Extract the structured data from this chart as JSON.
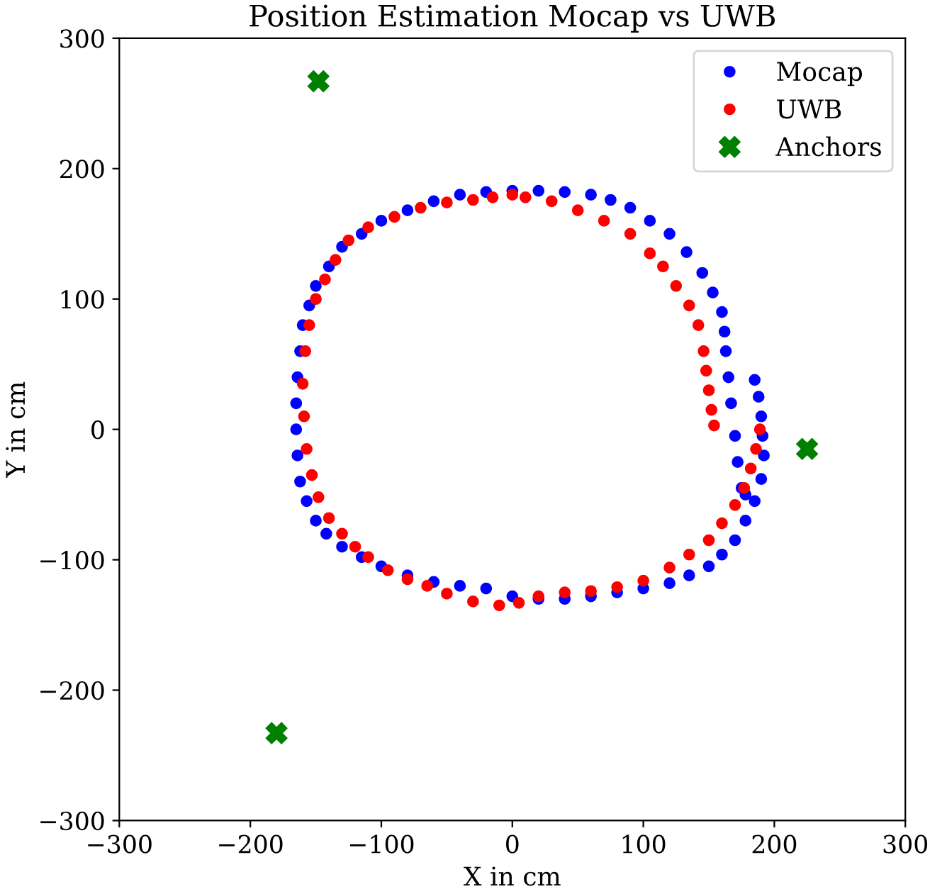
{
  "chart_data": {
    "type": "scatter",
    "title": "Position Estimation Mocap vs UWB",
    "xlabel": "X in cm",
    "ylabel": "Y in cm",
    "xlim": [
      -300,
      300
    ],
    "ylim": [
      -300,
      300
    ],
    "xticks": [
      -300,
      -200,
      -100,
      0,
      100,
      200,
      300
    ],
    "yticks": [
      -300,
      -200,
      -100,
      0,
      100,
      200,
      300
    ],
    "grid": false,
    "legend": "top right",
    "series": [
      {
        "name": "Mocap",
        "color": "#0000ff",
        "marker": "circle",
        "x": [
          185,
          188,
          190,
          191,
          192,
          190,
          185,
          178,
          170,
          160,
          150,
          135,
          120,
          100,
          80,
          60,
          40,
          20,
          0,
          -20,
          -40,
          -60,
          -80,
          -100,
          -115,
          -130,
          -142,
          -150,
          -157,
          -162,
          -164,
          -165,
          -165,
          -164,
          -162,
          -160,
          -155,
          -150,
          -140,
          -130,
          -115,
          -100,
          -80,
          -60,
          -40,
          -20,
          0,
          20,
          40,
          60,
          75,
          90,
          105,
          120,
          133,
          145,
          153,
          160,
          162,
          163,
          165,
          167,
          170,
          172,
          175,
          178
        ],
        "values": [
          38,
          25,
          10,
          -5,
          -20,
          -38,
          -55,
          -70,
          -85,
          -96,
          -105,
          -112,
          -118,
          -122,
          -125,
          -128,
          -130,
          -130,
          -128,
          -122,
          -120,
          -117,
          -112,
          -105,
          -98,
          -90,
          -80,
          -70,
          -55,
          -40,
          -20,
          0,
          20,
          40,
          60,
          80,
          95,
          110,
          125,
          140,
          150,
          160,
          168,
          175,
          180,
          182,
          183,
          183,
          182,
          180,
          176,
          170,
          160,
          150,
          136,
          120,
          105,
          90,
          75,
          60,
          40,
          20,
          -5,
          -25,
          -45,
          -50
        ]
      },
      {
        "name": "UWB",
        "color": "#ff0000",
        "marker": "circle",
        "x": [
          154,
          152,
          150,
          148,
          146,
          142,
          135,
          125,
          115,
          105,
          90,
          70,
          50,
          30,
          10,
          0,
          -15,
          -30,
          -50,
          -70,
          -90,
          -110,
          -125,
          -135,
          -143,
          -150,
          -155,
          -158,
          -160,
          -159,
          -157,
          -153,
          -148,
          -140,
          -130,
          -120,
          -110,
          -95,
          -80,
          -65,
          -50,
          -30,
          -10,
          5,
          20,
          40,
          60,
          80,
          100,
          120,
          135,
          150,
          160,
          170,
          177,
          182,
          186,
          189
        ],
        "values": [
          3,
          15,
          30,
          45,
          60,
          80,
          95,
          110,
          125,
          135,
          150,
          160,
          168,
          175,
          178,
          180,
          178,
          176,
          174,
          170,
          163,
          155,
          145,
          130,
          115,
          100,
          80,
          60,
          35,
          10,
          -15,
          -35,
          -52,
          -68,
          -80,
          -90,
          -98,
          -108,
          -115,
          -120,
          -126,
          -132,
          -135,
          -133,
          -128,
          -125,
          -124,
          -121,
          -116,
          -106,
          -96,
          -85,
          -72,
          -58,
          -45,
          -30,
          -15,
          0
        ]
      },
      {
        "name": "Anchors",
        "color": "#008000",
        "marker": "cross",
        "x": [
          -148,
          225,
          -180
        ],
        "values": [
          267,
          -15,
          -233
        ]
      }
    ]
  }
}
